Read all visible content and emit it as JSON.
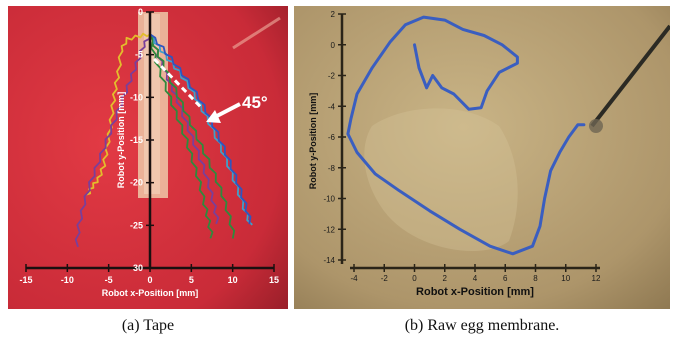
{
  "chart_data": [
    {
      "type": "line",
      "xlabel": "Robot x-Position [mm]",
      "ylabel": "Robot y-Position [mm]",
      "xlim": [
        -15,
        15
      ],
      "ylim": [
        0,
        30
      ],
      "y_inverted": true,
      "xticks": [
        -15,
        -10,
        -5,
        0,
        5,
        10,
        15
      ],
      "yticks": [
        0,
        -5,
        -10,
        -15,
        -20,
        -25,
        30
      ],
      "annotation": "45°",
      "colors": {
        "background": "#d3313c",
        "tape": "#efc8a8",
        "yellow": "#e3bd2c",
        "purple": "#7a3f9a",
        "green": "#2f8a3c",
        "cyan": "#3fa0c8",
        "blue": "#2f55c0"
      },
      "series": [
        {
          "color": "yellow",
          "points": [
            [
              0,
              -2.6
            ],
            [
              -1.2,
              -2.8
            ],
            [
              -2.8,
              -3.2
            ],
            [
              -3.5,
              -4.5
            ],
            [
              -3.8,
              -7
            ],
            [
              -4.2,
              -9
            ],
            [
              -4.5,
              -11
            ],
            [
              -4.8,
              -13.5
            ],
            [
              -5.2,
              -16
            ],
            [
              -5.6,
              -18
            ],
            [
              -6.2,
              -19.5
            ],
            [
              -7,
              -20.5
            ],
            [
              -7.6,
              -21.5
            ]
          ]
        },
        {
          "color": "purple",
          "points": [
            [
              0,
              -2.6
            ],
            [
              -0.8,
              -4
            ],
            [
              -1.6,
              -6
            ],
            [
              -2.4,
              -8
            ],
            [
              -3.2,
              -10
            ],
            [
              -4.2,
              -12.5
            ],
            [
              -5.2,
              -15
            ],
            [
              -6.2,
              -17.5
            ],
            [
              -7.2,
              -20
            ],
            [
              -8,
              -22.5
            ],
            [
              -8.6,
              -25
            ],
            [
              -8.9,
              -27.5
            ]
          ]
        },
        {
          "color": "purple",
          "points": [
            [
              0,
              -2.6
            ],
            [
              0.8,
              -4.5
            ],
            [
              1.6,
              -6.5
            ],
            [
              2.5,
              -8.5
            ],
            [
              3.4,
              -10.5
            ],
            [
              4.4,
              -13
            ],
            [
              5.4,
              -15.5
            ],
            [
              6.4,
              -18
            ],
            [
              7.2,
              -20.5
            ],
            [
              7.8,
              -22.8
            ],
            [
              8.2,
              -24.8
            ]
          ]
        },
        {
          "color": "green",
          "points": [
            [
              0,
              -2.6
            ],
            [
              0.5,
              -5
            ],
            [
              1.4,
              -7.5
            ],
            [
              2.4,
              -10
            ],
            [
              3.4,
              -12.5
            ],
            [
              4.4,
              -15
            ],
            [
              5.2,
              -17.5
            ],
            [
              6,
              -20
            ],
            [
              6.6,
              -22.5
            ],
            [
              7.1,
              -24.5
            ],
            [
              7.5,
              -26.5
            ]
          ]
        },
        {
          "color": "green",
          "points": [
            [
              0,
              -2.6
            ],
            [
              0.8,
              -4.5
            ],
            [
              1.8,
              -6.5
            ],
            [
              3,
              -9
            ],
            [
              4.2,
              -11.5
            ],
            [
              5.4,
              -14
            ],
            [
              6.6,
              -16.5
            ],
            [
              7.8,
              -19
            ],
            [
              8.8,
              -21.5
            ],
            [
              9.6,
              -24
            ],
            [
              10.2,
              -26.5
            ]
          ]
        },
        {
          "color": "cyan",
          "points": [
            [
              0,
              -2.6
            ],
            [
              1,
              -4
            ],
            [
              2.2,
              -5.5
            ],
            [
              3.5,
              -7
            ],
            [
              4.8,
              -8.8
            ],
            [
              6,
              -10.8
            ],
            [
              7.2,
              -13
            ],
            [
              8.4,
              -15.5
            ],
            [
              9.5,
              -18
            ],
            [
              10.5,
              -20.5
            ],
            [
              11.4,
              -23
            ],
            [
              12.2,
              -25
            ]
          ]
        },
        {
          "color": "blue",
          "points": [
            [
              0,
              -2.6
            ],
            [
              1.5,
              -4.2
            ],
            [
              3,
              -6
            ],
            [
              4.5,
              -8
            ],
            [
              6,
              -10.2
            ],
            [
              7.3,
              -12.5
            ],
            [
              8.5,
              -15
            ],
            [
              9.6,
              -17.5
            ],
            [
              10.6,
              -20
            ],
            [
              11.5,
              -22.5
            ],
            [
              12.2,
              -24.8
            ]
          ]
        }
      ]
    },
    {
      "type": "line",
      "xlabel": "Robot x-Position [mm]",
      "ylabel": "Robot y-Position [mm]",
      "xlim": [
        -4,
        12
      ],
      "ylim": [
        -14,
        2
      ],
      "xticks": [
        -4,
        -2,
        0,
        2,
        4,
        6,
        8,
        10,
        12
      ],
      "yticks": [
        2,
        0,
        -2,
        -4,
        -6,
        -8,
        -10,
        -12,
        -14
      ],
      "colors": {
        "background": "#b09a6c",
        "trajectory": "#3a5ec0"
      },
      "series": [
        {
          "color": "trajectory",
          "points": [
            [
              0,
              0
            ],
            [
              0.3,
              -1.5
            ],
            [
              0.8,
              -2.8
            ],
            [
              1.2,
              -2
            ],
            [
              1.8,
              -2.8
            ],
            [
              2.6,
              -3.2
            ],
            [
              3.2,
              -3.8
            ],
            [
              3.6,
              -4.2
            ],
            [
              4.4,
              -4.1
            ],
            [
              4.8,
              -3
            ],
            [
              5.6,
              -1.8
            ],
            [
              6.8,
              -1.2
            ],
            [
              6.8,
              -0.8
            ],
            [
              5.8,
              0
            ],
            [
              4.6,
              0.6
            ],
            [
              3.2,
              1
            ],
            [
              2,
              1.6
            ],
            [
              0.6,
              1.8
            ],
            [
              -0.6,
              1.3
            ],
            [
              -1.6,
              0.2
            ],
            [
              -2.8,
              -1.5
            ],
            [
              -3.8,
              -3.2
            ],
            [
              -4.2,
              -4.8
            ],
            [
              -4.4,
              -5.8
            ],
            [
              -3.8,
              -7
            ],
            [
              -2.6,
              -8.4
            ],
            [
              -1,
              -9.5
            ],
            [
              1,
              -10.8
            ],
            [
              3,
              -12
            ],
            [
              5,
              -13.1
            ],
            [
              6.5,
              -13.6
            ],
            [
              7.8,
              -13.1
            ],
            [
              8.3,
              -11.8
            ],
            [
              8.6,
              -10
            ],
            [
              9,
              -8.2
            ],
            [
              9.6,
              -7
            ],
            [
              10.2,
              -6
            ],
            [
              10.8,
              -5.2
            ],
            [
              11.2,
              -5.2
            ]
          ]
        }
      ]
    }
  ],
  "captions": [
    "(a) Tape",
    "(b) Raw egg membrane."
  ]
}
